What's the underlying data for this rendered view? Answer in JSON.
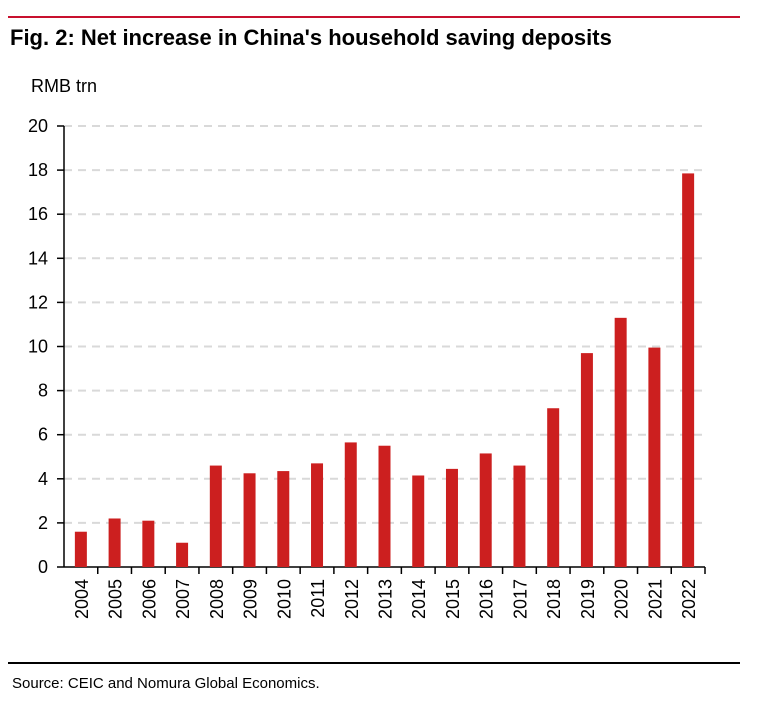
{
  "header": {
    "title": "Fig. 2: Net increase in China's household saving deposits",
    "unit_label": "RMB trn"
  },
  "footer": {
    "source": "Source: CEIC and Nomura Global Economics."
  },
  "colors": {
    "bar": "#cc1f1f",
    "grid": "#d9d9d9",
    "accent_rule": "#c8102e"
  },
  "chart_data": {
    "type": "bar",
    "title": "Fig. 2: Net increase in China's household saving deposits",
    "xlabel": "",
    "ylabel": "RMB trn",
    "ylim": [
      0,
      20
    ],
    "yticks": [
      0,
      2,
      4,
      6,
      8,
      10,
      12,
      14,
      16,
      18,
      20
    ],
    "grid": "horizontal dashed",
    "legend": "none",
    "categories": [
      "2004",
      "2005",
      "2006",
      "2007",
      "2008",
      "2009",
      "2010",
      "2011",
      "2012",
      "2013",
      "2014",
      "2015",
      "2016",
      "2017",
      "2018",
      "2019",
      "2020",
      "2021",
      "2022"
    ],
    "values": [
      1.6,
      2.2,
      2.1,
      1.1,
      4.6,
      4.25,
      4.35,
      4.7,
      5.65,
      5.5,
      4.15,
      4.45,
      5.15,
      4.6,
      7.2,
      9.7,
      11.3,
      9.95,
      17.85
    ]
  }
}
